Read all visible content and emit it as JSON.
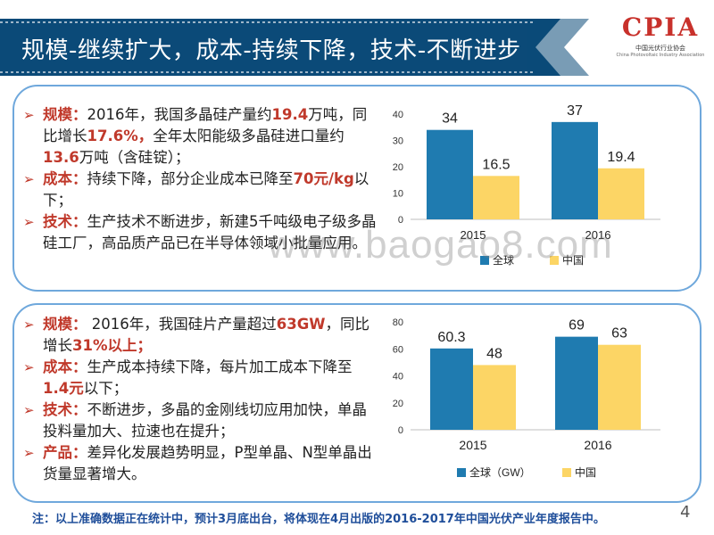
{
  "header": {
    "title": "规模-继续扩大，成本-持续下降，技术-不断进步"
  },
  "logo": {
    "mark": "CPIA",
    "org": "中国光伏行业协会",
    "org_en": "China Photovoltaic Industry Association"
  },
  "panel1": {
    "b1": {
      "key": "规模：",
      "t1": "2016年，我国多晶硅产量约",
      "h1": "19.4",
      "t2": "万吨，同比增长",
      "h2": "17.6%，",
      "t3": "全年太阳能级多晶硅进口量约",
      "h3": "13.6",
      "t4": "万吨（含硅锭）；"
    },
    "b2": {
      "key": "成本：",
      "t1": "持续下降，部分企业成本已降至",
      "h1": "70元/kg",
      "t2": "以下；"
    },
    "b3": {
      "key": "技术：",
      "t1": "生产技术不断进步，新建5千吨级电子级多晶硅工厂，高品质产品已在半导体领域小批量应用。"
    }
  },
  "panel2": {
    "b1": {
      "key": "规模：",
      "t1": " 2016年，我国硅片产量超过",
      "h1": "63GW",
      "t2": "，同比增长",
      "h2": "31%以上；"
    },
    "b2": {
      "key": "成本：",
      "t1": "生产成本持续下降，每片加工成本下降至",
      "h1": "1.4元",
      "t2": "以下；"
    },
    "b3": {
      "key": "技术：",
      "t1": "不断进步，多晶的金刚线切应用加快，单晶投料量加大、拉速也在提升；"
    },
    "b4": {
      "key": "产品：",
      "t1": "差异化发展趋势明显，P型单晶、N型单晶出货量显著增大。"
    }
  },
  "chart_data": [
    {
      "type": "bar",
      "categories": [
        "2015",
        "2016"
      ],
      "series": [
        {
          "name": "全球",
          "values": [
            34,
            37
          ],
          "color": "#1f7bb0"
        },
        {
          "name": "中国",
          "values": [
            16.5,
            19.4
          ],
          "color": "#fcd565"
        }
      ],
      "ylim": [
        0,
        40
      ],
      "yticks": [
        0,
        10,
        20,
        30,
        40
      ],
      "title": "",
      "xlabel": "",
      "ylabel": "",
      "legend": "bottom",
      "grid": false
    },
    {
      "type": "bar",
      "categories": [
        "2015",
        "2016"
      ],
      "series": [
        {
          "name": "全球（GW）",
          "values": [
            60.3,
            69
          ],
          "color": "#1f7bb0"
        },
        {
          "name": "中国",
          "values": [
            48,
            63
          ],
          "color": "#fcd565"
        }
      ],
      "ylim": [
        0,
        80
      ],
      "yticks": [
        0,
        20,
        40,
        60,
        80
      ],
      "title": "",
      "xlabel": "",
      "ylabel": "",
      "legend": "bottom",
      "grid": false
    }
  ],
  "footer": {
    "note": "注：以上准确数据正在统计中，预计3月底出台，将体现在4月出版的2016-2017年中国光伏产业年度报告中。",
    "page": "4"
  },
  "watermark": "www.baogao8.com",
  "colors": {
    "ribbon": "#0b4a78",
    "accent": "#c0392b",
    "panel_border": "#6fa8dc"
  }
}
